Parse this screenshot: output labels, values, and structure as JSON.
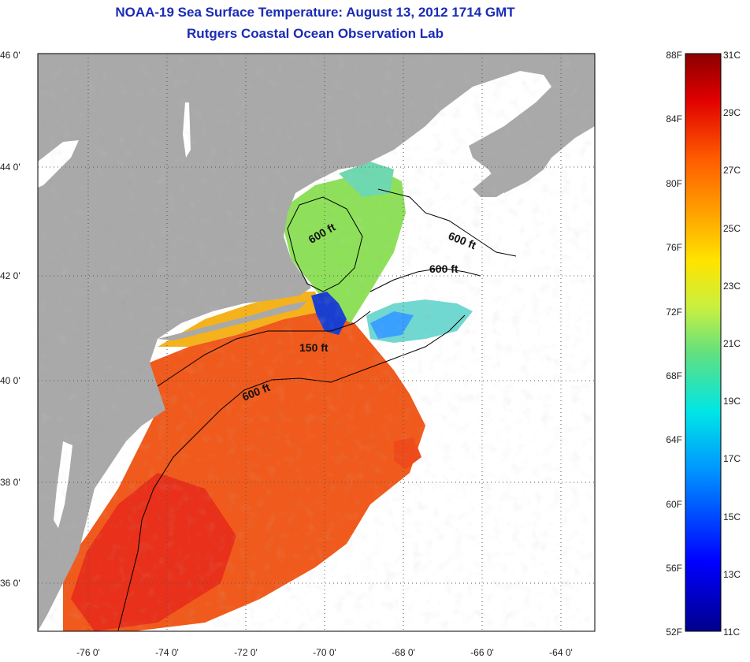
{
  "titles": {
    "line1": "NOAA-19 Sea Surface Temperature:  August 13, 2012 1714 GMT",
    "line2": "Rutgers Coastal Ocean Observation Lab"
  },
  "map": {
    "lat_labels": [
      "46 0'",
      "44 0'",
      "42 0'",
      "40 0'",
      "38 0'",
      "36 0'"
    ],
    "lon_labels": [
      "-76 0'",
      "-74 0'",
      "-72 0'",
      "-70 0'",
      "-68 0'",
      "-66 0'",
      "-64 0'"
    ],
    "contour_labels": [
      "600 ft",
      "600 ft",
      "600 ft",
      "150 ft",
      "600 ft"
    ],
    "colors": {
      "land": "#a9a9a9",
      "cloud": "#ffffff",
      "warm": "#f05a1c",
      "cool": "#7fdc5a",
      "cold": "#1a3fd0",
      "contour": "#000000"
    }
  },
  "colorbar": {
    "fahrenheit_labels": [
      "88F",
      "84F",
      "80F",
      "76F",
      "72F",
      "68F",
      "64F",
      "60F",
      "56F",
      "52F"
    ],
    "celsius_labels": [
      "31C",
      "29C",
      "27C",
      "25C",
      "23C",
      "21C",
      "19C",
      "17C",
      "15C",
      "13C",
      "11C"
    ]
  }
}
